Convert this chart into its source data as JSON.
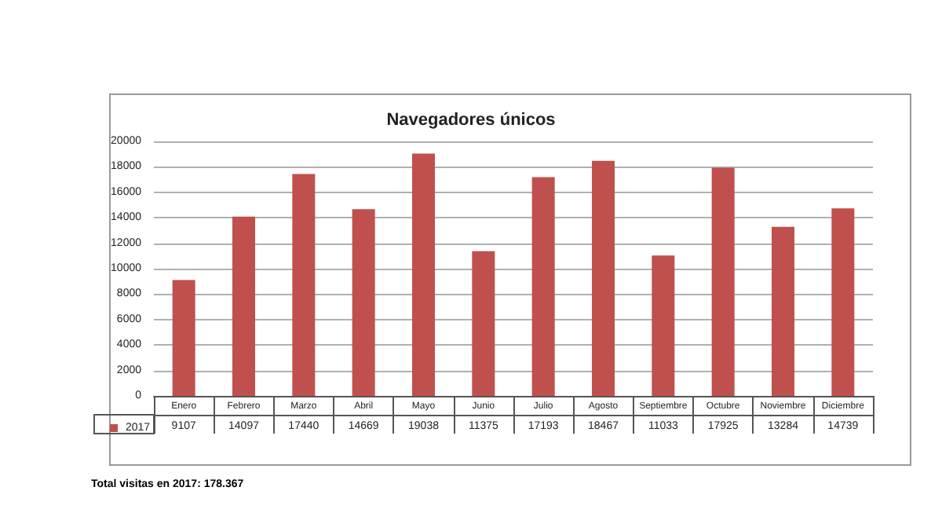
{
  "chart_data": {
    "type": "bar",
    "title": "Navegadores únicos",
    "categories": [
      "Enero",
      "Febrero",
      "Marzo",
      "Abril",
      "Mayo",
      "Junio",
      "Julio",
      "Agosto",
      "Septiembre",
      "Octubre",
      "Noviembre",
      "Diciembre"
    ],
    "series": [
      {
        "name": "2017",
        "color": "#c0504d",
        "values": [
          9107,
          14097,
          17440,
          14669,
          19038,
          11375,
          17193,
          18467,
          11033,
          17925,
          13284,
          14739
        ]
      }
    ],
    "ylim": [
      0,
      20000
    ],
    "yticks": [
      0,
      2000,
      4000,
      6000,
      8000,
      10000,
      12000,
      14000,
      16000,
      18000,
      20000
    ],
    "grid": "y",
    "legend": "bottom left",
    "data_labels": true,
    "annotations": [
      "Total visitas en 2017: 178.367"
    ]
  }
}
